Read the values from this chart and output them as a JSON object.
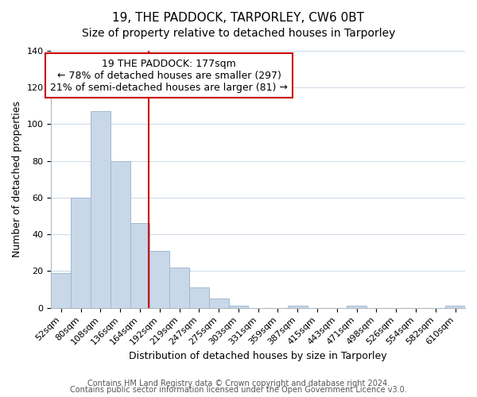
{
  "title": "19, THE PADDOCK, TARPORLEY, CW6 0BT",
  "subtitle": "Size of property relative to detached houses in Tarporley",
  "xlabel": "Distribution of detached houses by size in Tarporley",
  "ylabel": "Number of detached properties",
  "bar_labels": [
    "52sqm",
    "80sqm",
    "108sqm",
    "136sqm",
    "164sqm",
    "192sqm",
    "219sqm",
    "247sqm",
    "275sqm",
    "303sqm",
    "331sqm",
    "359sqm",
    "387sqm",
    "415sqm",
    "443sqm",
    "471sqm",
    "498sqm",
    "526sqm",
    "554sqm",
    "582sqm",
    "610sqm"
  ],
  "bar_values": [
    19,
    60,
    107,
    80,
    46,
    31,
    22,
    11,
    5,
    1,
    0,
    0,
    1,
    0,
    0,
    1,
    0,
    0,
    0,
    0,
    1
  ],
  "bar_color": "#c8d8e8",
  "bar_edge_color": "#a0b8d0",
  "vline_color": "#cc0000",
  "annotation_line1": "19 THE PADDOCK: 177sqm",
  "annotation_line2": "← 78% of detached houses are smaller (297)",
  "annotation_line3": "21% of semi-detached houses are larger (81) →",
  "ylim": [
    0,
    140
  ],
  "yticks": [
    0,
    20,
    40,
    60,
    80,
    100,
    120,
    140
  ],
  "footer_line1": "Contains HM Land Registry data © Crown copyright and database right 2024.",
  "footer_line2": "Contains public sector information licensed under the Open Government Licence v3.0.",
  "background_color": "#ffffff",
  "grid_color": "#d0dce8",
  "title_fontsize": 11,
  "subtitle_fontsize": 10,
  "axis_fontsize": 9,
  "tick_fontsize": 8,
  "annotation_fontsize": 9,
  "footer_fontsize": 7
}
